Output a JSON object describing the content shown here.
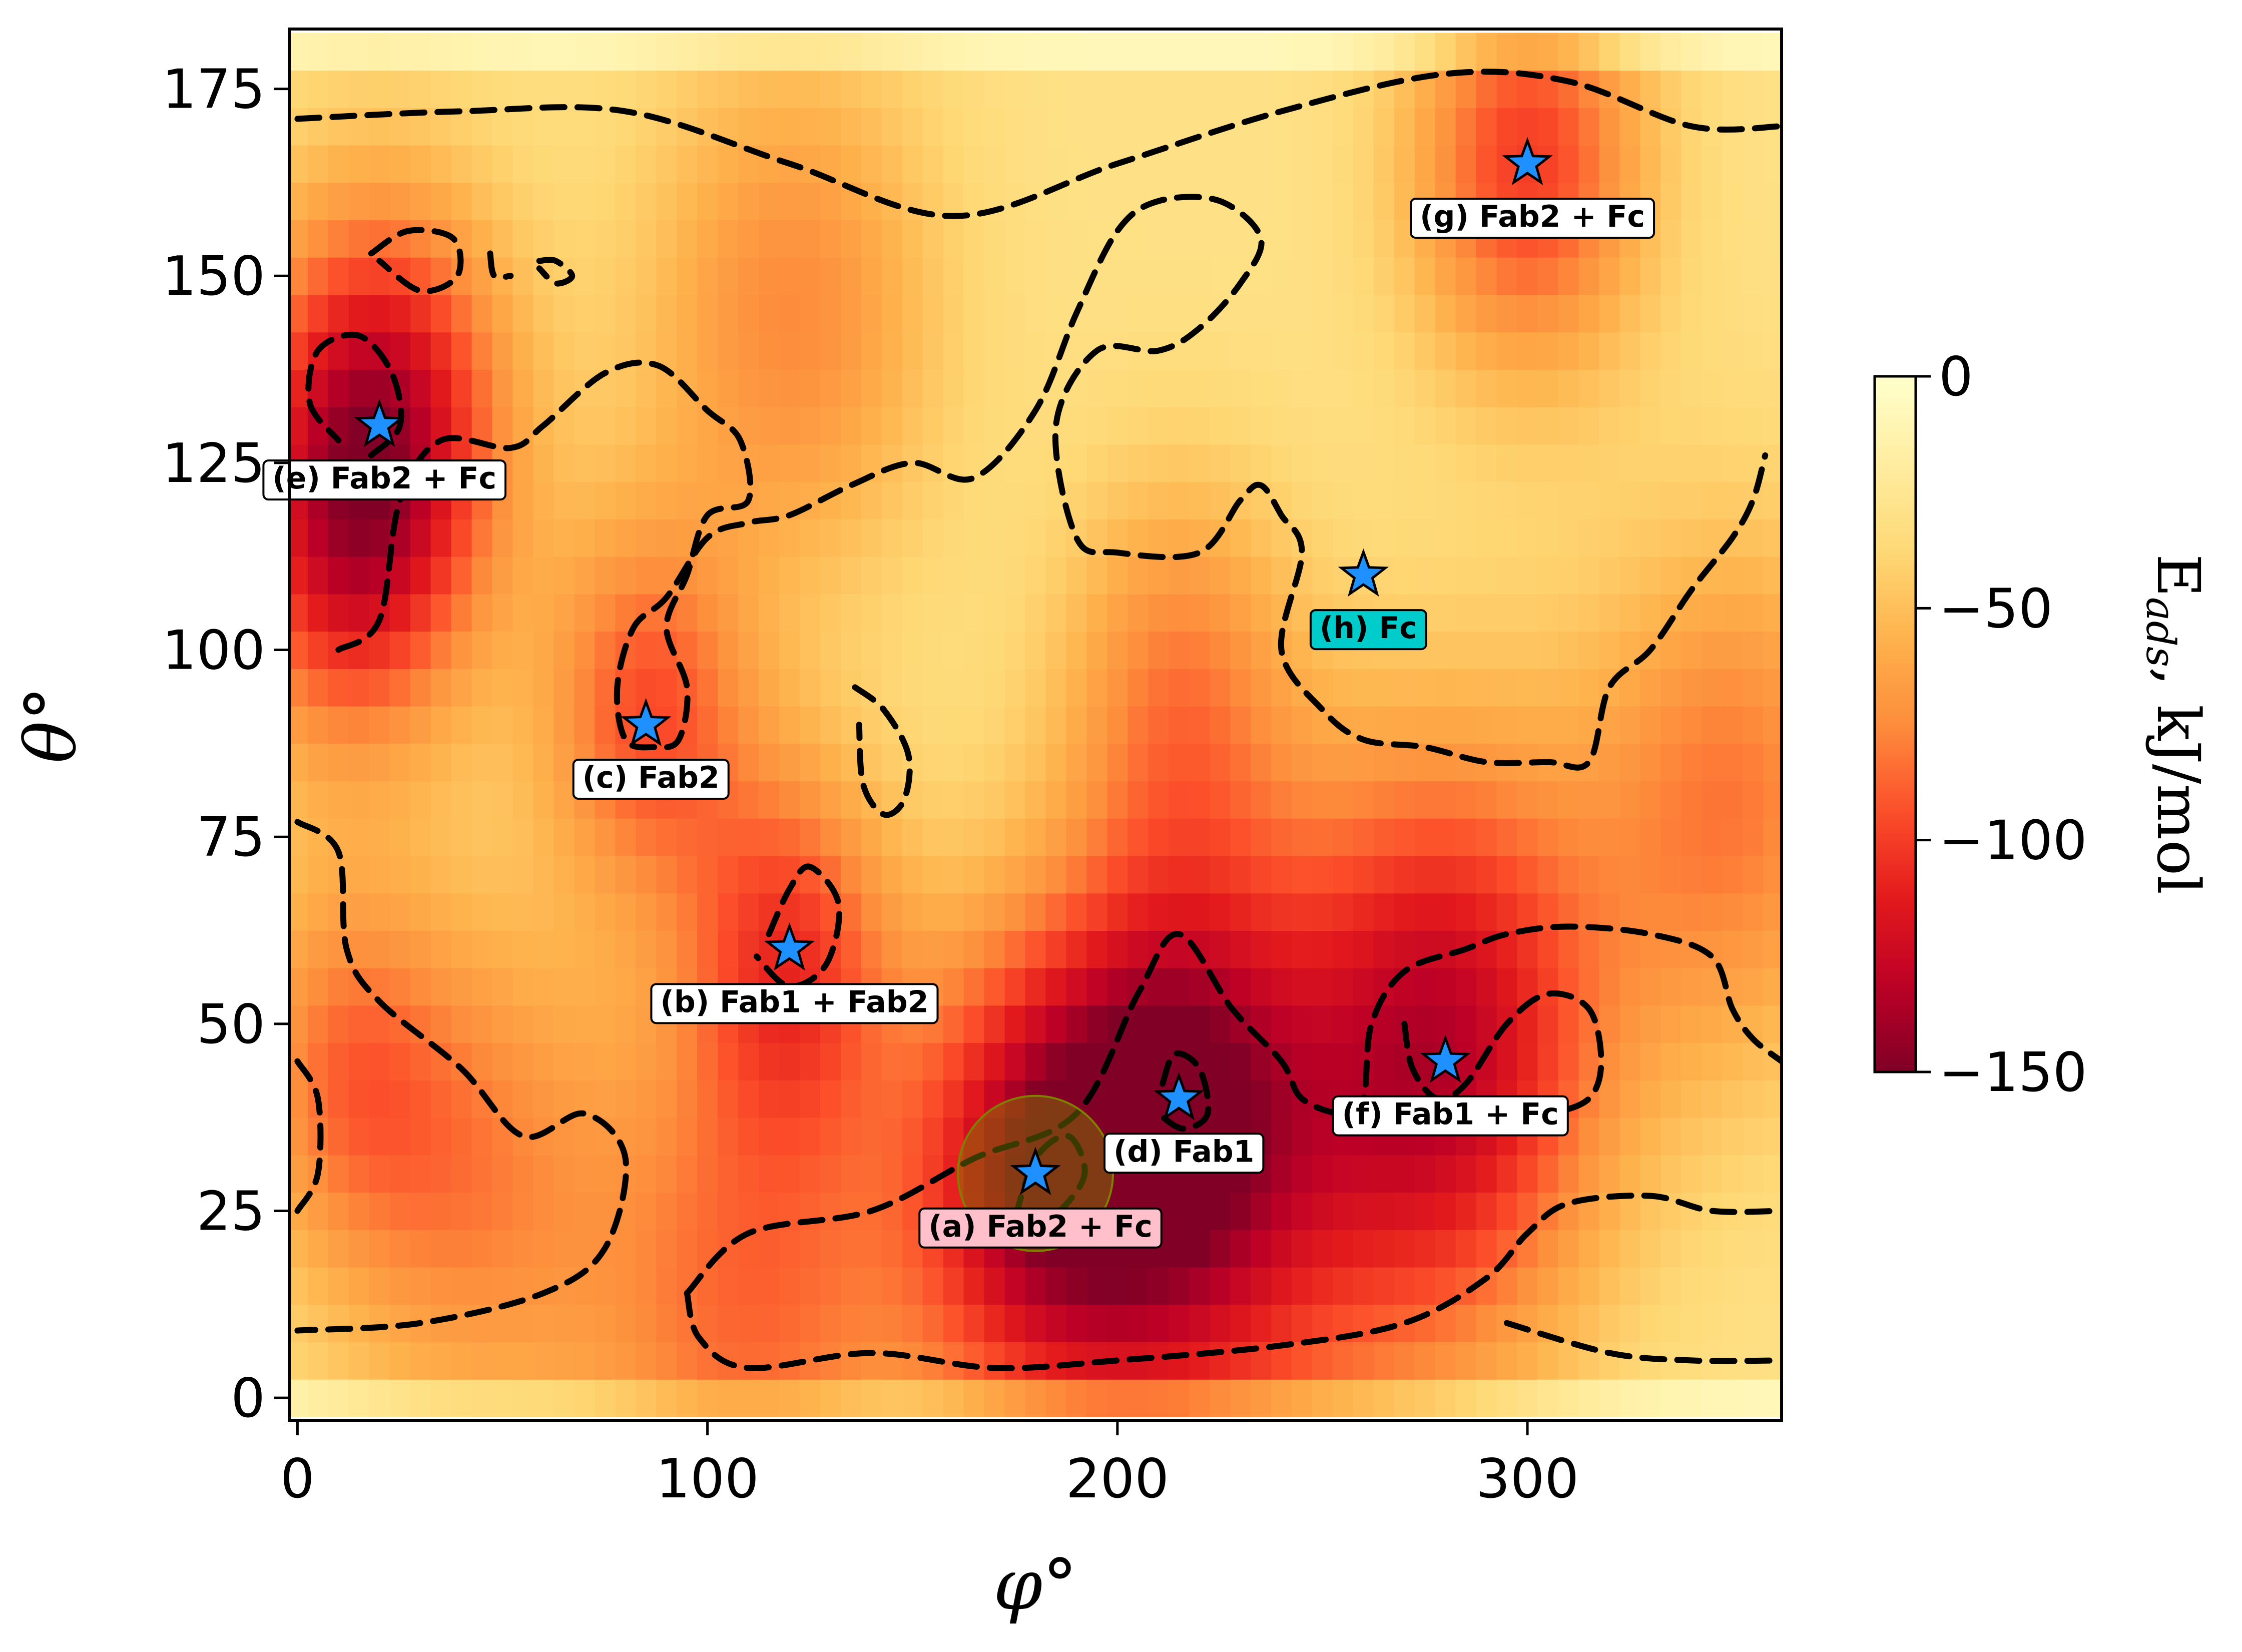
{
  "chart_data": {
    "type": "heatmap",
    "title": "",
    "xlabel": "φ°",
    "ylabel": "θ°",
    "xlim": [
      -2,
      362
    ],
    "ylim": [
      -3,
      183
    ],
    "x_ticks": [
      0,
      100,
      200,
      300
    ],
    "y_ticks": [
      0,
      25,
      50,
      75,
      100,
      125,
      150,
      175
    ],
    "colorbar": {
      "label_main": "E",
      "label_sub": "ads",
      "label_unit": ", kJ/mol",
      "min": -150,
      "max": 0,
      "ticks": [
        0,
        -50,
        -100,
        -150
      ],
      "tick_labels": [
        "0",
        "−50",
        "−100",
        "−150"
      ],
      "colormap": "YlOrRd_r"
    },
    "field_sources": [
      {
        "phi": 20,
        "theta": 130,
        "depth": -95,
        "spread": 22
      },
      {
        "phi": 300,
        "theta": 165,
        "depth": -70,
        "spread": 20
      },
      {
        "phi": 280,
        "theta": 47,
        "depth": -95,
        "spread": 28
      },
      {
        "phi": 215,
        "theta": 40,
        "depth": -70,
        "spread": 22
      },
      {
        "phi": 180,
        "theta": 30,
        "depth": -80,
        "spread": 22
      },
      {
        "phi": 120,
        "theta": 60,
        "depth": -60,
        "spread": 18
      },
      {
        "phi": 85,
        "theta": 92,
        "depth": -60,
        "spread": 18
      },
      {
        "phi": 110,
        "theta": 12,
        "depth": -55,
        "spread": 30
      },
      {
        "phi": 220,
        "theta": 18,
        "depth": -55,
        "spread": 35
      },
      {
        "phi": 10,
        "theta": 110,
        "depth": -45,
        "spread": 20
      },
      {
        "phi": 120,
        "theta": 145,
        "depth": -45,
        "spread": 25
      },
      {
        "phi": 350,
        "theta": 80,
        "depth": -50,
        "spread": 25
      },
      {
        "phi": 215,
        "theta": 95,
        "depth": -45,
        "spread": 20
      },
      {
        "phi": 40,
        "theta": 30,
        "depth": -45,
        "spread": 25
      },
      {
        "phi": 10,
        "theta": 45,
        "depth": -40,
        "spread": 18
      }
    ],
    "markers": [
      {
        "id": "a",
        "phi": 180,
        "theta": 30,
        "label": "(a) Fab2 + Fc",
        "box_color": "#ffc0cb",
        "highlight": true
      },
      {
        "id": "b",
        "phi": 120,
        "theta": 60,
        "label": "(b) Fab1 + Fab2",
        "box_color": "#ffffff"
      },
      {
        "id": "c",
        "phi": 85,
        "theta": 90,
        "label": "(c) Fab2",
        "box_color": "#ffffff"
      },
      {
        "id": "d",
        "phi": 215,
        "theta": 40,
        "label": "(d) Fab1",
        "box_color": "#ffffff"
      },
      {
        "id": "e",
        "phi": 20,
        "theta": 130,
        "label": "(e) Fab2 + Fc",
        "box_color": "#ffffff"
      },
      {
        "id": "f",
        "phi": 280,
        "theta": 45,
        "label": "(f) Fab1 + Fc",
        "box_color": "#ffffff"
      },
      {
        "id": "g",
        "phi": 300,
        "theta": 165,
        "label": "(g) Fab2 + Fc",
        "box_color": "#ffffff"
      },
      {
        "id": "h",
        "phi": 260,
        "theta": 110,
        "label": "(h) Fc",
        "box_color": "#00cccc"
      }
    ],
    "marker_color": "#1e90ff",
    "highlight_color": "#808000",
    "contours": [
      [
        [
          0,
          171
        ],
        [
          40,
          172
        ],
        [
          80,
          172
        ],
        [
          120,
          165
        ],
        [
          160,
          158
        ],
        [
          200,
          165
        ],
        [
          240,
          172
        ],
        [
          280,
          177
        ],
        [
          310,
          176
        ],
        [
          340,
          170
        ],
        [
          362,
          170
        ]
      ],
      [
        [
          18,
          153
        ],
        [
          27,
          156
        ],
        [
          38,
          155
        ],
        [
          39,
          150
        ],
        [
          30,
          148
        ],
        [
          20,
          152
        ]
      ],
      [
        [
          59,
          152
        ],
        [
          63,
          152
        ],
        [
          67,
          150
        ],
        [
          63,
          149
        ],
        [
          59,
          151
        ]
      ],
      [
        [
          47,
          153
        ],
        [
          48,
          150
        ],
        [
          52,
          150
        ]
      ],
      [
        [
          10,
          100
        ],
        [
          20,
          104
        ],
        [
          25,
          120
        ],
        [
          35,
          128
        ],
        [
          52,
          127
        ],
        [
          60,
          130
        ],
        [
          75,
          137
        ],
        [
          88,
          138
        ],
        [
          100,
          132
        ],
        [
          108,
          128
        ],
        [
          110,
          120
        ],
        [
          100,
          118
        ],
        [
          95,
          110
        ],
        [
          90,
          103
        ],
        [
          95,
          95
        ],
        [
          93,
          88
        ],
        [
          87,
          87
        ],
        [
          80,
          88
        ],
        [
          78,
          95
        ],
        [
          82,
          103
        ],
        [
          90,
          107
        ],
        [
          100,
          115
        ],
        [
          110,
          117
        ],
        [
          120,
          118
        ],
        [
          135,
          122
        ],
        [
          150,
          125
        ],
        [
          165,
          123
        ],
        [
          180,
          132
        ],
        [
          190,
          145
        ],
        [
          200,
          156
        ],
        [
          210,
          160
        ],
        [
          225,
          160
        ],
        [
          235,
          155
        ],
        [
          230,
          149
        ],
        [
          220,
          143
        ],
        [
          210,
          140
        ],
        [
          195,
          140
        ],
        [
          185,
          130
        ],
        [
          190,
          115
        ],
        [
          200,
          113
        ],
        [
          220,
          113
        ],
        [
          230,
          120
        ],
        [
          235,
          122
        ],
        [
          240,
          118
        ],
        [
          245,
          113
        ],
        [
          240,
          100
        ],
        [
          250,
          92
        ],
        [
          260,
          88
        ],
        [
          275,
          87
        ],
        [
          290,
          85
        ],
        [
          305,
          85
        ],
        [
          315,
          85
        ],
        [
          320,
          95
        ],
        [
          330,
          100
        ],
        [
          340,
          108
        ],
        [
          350,
          115
        ],
        [
          355,
          120
        ],
        [
          358,
          126
        ]
      ],
      [
        [
          18,
          126
        ],
        [
          25,
          130
        ],
        [
          23,
          137
        ],
        [
          15,
          142
        ],
        [
          5,
          140
        ],
        [
          3,
          133
        ],
        [
          10,
          128
        ]
      ],
      [
        [
          136,
          95
        ],
        [
          143,
          92
        ],
        [
          149,
          86
        ],
        [
          148,
          80
        ],
        [
          143,
          78
        ],
        [
          138,
          82
        ],
        [
          137,
          90
        ]
      ],
      [
        [
          115,
          62
        ],
        [
          120,
          68
        ],
        [
          125,
          71
        ],
        [
          132,
          66
        ],
        [
          129,
          58
        ],
        [
          120,
          55
        ],
        [
          112,
          59
        ]
      ],
      [
        [
          0,
          77
        ],
        [
          10,
          73
        ],
        [
          12,
          60
        ],
        [
          20,
          53
        ],
        [
          40,
          44
        ],
        [
          55,
          35
        ],
        [
          70,
          38
        ],
        [
          80,
          32
        ],
        [
          75,
          20
        ],
        [
          60,
          14
        ],
        [
          30,
          10
        ],
        [
          0,
          9
        ]
      ],
      [
        [
          0,
          45
        ],
        [
          5,
          40
        ],
        [
          5,
          30
        ],
        [
          0,
          25
        ]
      ],
      [
        [
          95,
          14
        ],
        [
          110,
          22
        ],
        [
          140,
          25
        ],
        [
          165,
          32
        ],
        [
          190,
          38
        ],
        [
          205,
          54
        ],
        [
          215,
          62
        ],
        [
          228,
          52
        ],
        [
          240,
          45
        ],
        [
          245,
          40
        ],
        [
          255,
          38
        ],
        [
          260,
          40
        ],
        [
          262,
          50
        ],
        [
          270,
          57
        ],
        [
          285,
          60
        ],
        [
          295,
          62
        ],
        [
          310,
          63
        ],
        [
          330,
          62
        ],
        [
          345,
          59
        ],
        [
          350,
          52
        ],
        [
          355,
          48
        ],
        [
          362,
          45
        ]
      ],
      [
        [
          175,
          24
        ],
        [
          180,
          32
        ],
        [
          188,
          35
        ],
        [
          192,
          30
        ],
        [
          186,
          25
        ],
        [
          178,
          22
        ]
      ],
      [
        [
          211,
          42
        ],
        [
          214,
          46
        ],
        [
          220,
          44
        ],
        [
          222,
          38
        ],
        [
          216,
          36
        ],
        [
          210,
          38
        ]
      ],
      [
        [
          270,
          50
        ],
        [
          272,
          44
        ],
        [
          278,
          40
        ],
        [
          285,
          42
        ],
        [
          295,
          50
        ],
        [
          305,
          54
        ],
        [
          315,
          52
        ],
        [
          318,
          45
        ],
        [
          315,
          40
        ],
        [
          305,
          38
        ],
        [
          295,
          38
        ],
        [
          285,
          38
        ]
      ],
      [
        [
          95,
          14
        ],
        [
          98,
          8
        ],
        [
          110,
          4
        ],
        [
          140,
          6
        ],
        [
          170,
          4
        ],
        [
          200,
          5
        ],
        [
          240,
          7
        ],
        [
          270,
          10
        ],
        [
          290,
          16
        ],
        [
          300,
          22
        ],
        [
          310,
          26
        ],
        [
          330,
          27
        ],
        [
          345,
          25
        ],
        [
          362,
          25
        ]
      ],
      [
        [
          295,
          10
        ],
        [
          320,
          6
        ],
        [
          340,
          5
        ],
        [
          362,
          5
        ]
      ]
    ]
  }
}
